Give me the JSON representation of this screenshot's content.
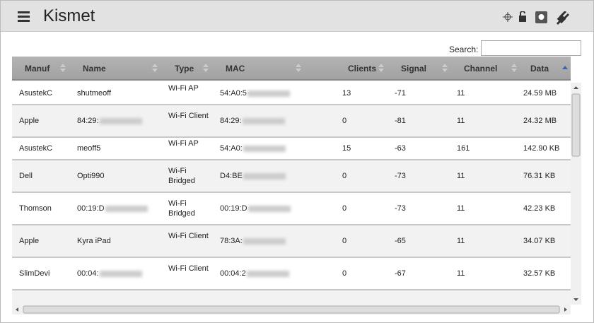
{
  "header": {
    "title": "Kismet"
  },
  "search": {
    "label": "Search:"
  },
  "table": {
    "columns": [
      "Manuf",
      "Name",
      "Type",
      "MAC",
      "Clients",
      "Signal",
      "Channel",
      "Data"
    ],
    "rows": [
      [
        "AsustekC",
        "shutmeoff",
        "Wi-Fi AP",
        "54:A0:5",
        "13",
        "-71",
        "11",
        "24.59 MB"
      ],
      [
        "Apple",
        "84:29:",
        "Wi-Fi Client",
        "84:29:",
        "0",
        "-81",
        "11",
        "24.32 MB"
      ],
      [
        "AsustekC",
        "meoff5",
        "Wi-Fi AP",
        "54:A0:",
        "15",
        "-63",
        "161",
        "142.90 KB"
      ],
      [
        "Dell",
        "Opti990",
        "Wi-Fi Bridged",
        "D4:BE",
        "0",
        "-73",
        "11",
        "76.31 KB"
      ],
      [
        "Thomson",
        "00:19:D",
        "Wi-Fi Bridged",
        "00:19:D",
        "0",
        "-73",
        "11",
        "42.23 KB"
      ],
      [
        "Apple",
        "Kyra iPad",
        "Wi-Fi Client",
        "78:3A:",
        "0",
        "-65",
        "11",
        "34.07 KB"
      ],
      [
        "SlimDevi",
        "00:04:",
        "Wi-Fi Client",
        "00:04:2",
        "0",
        "-67",
        "11",
        "32.57 KB"
      ]
    ]
  }
}
